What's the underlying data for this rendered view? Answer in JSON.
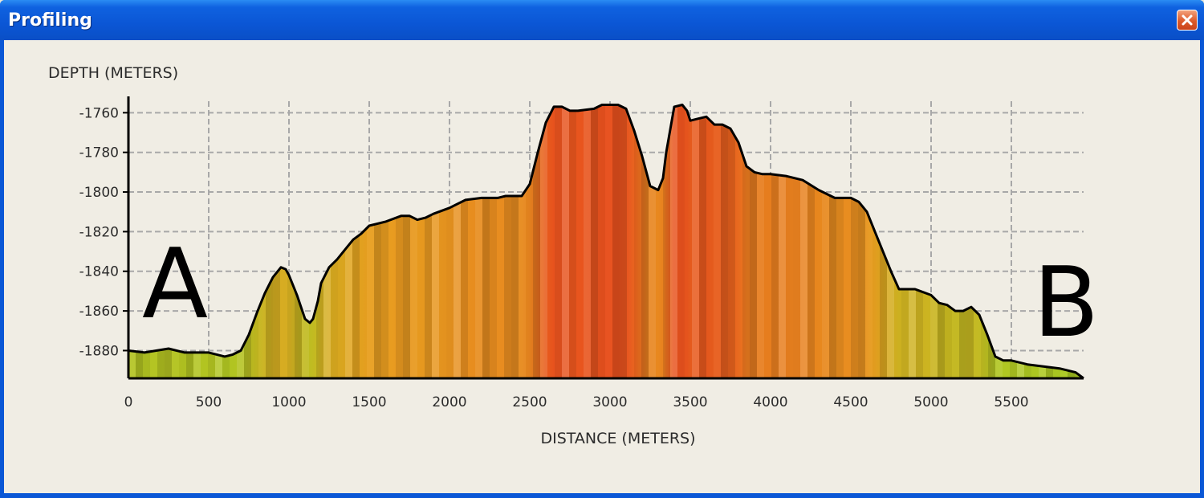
{
  "window": {
    "title": "Profiling"
  },
  "endpoints": {
    "start": "A",
    "end": "B"
  },
  "colors": {
    "titlebar": "#0b56d5",
    "background": "#f0ede4",
    "grid": "#a8a8a8",
    "profile_line": "#000000",
    "shallow": "#e8501e",
    "mid": "#e8a020",
    "deep": "#a8cc22"
  },
  "chart_data": {
    "type": "area",
    "xlabel": "DISTANCE (METERS)",
    "ylabel": "DEPTH (METERS)",
    "xlim": [
      0,
      5950
    ],
    "ylim": [
      -1894,
      -1755
    ],
    "x_ticks": [
      0,
      500,
      1000,
      1500,
      2000,
      2500,
      3000,
      3500,
      4000,
      4500,
      5000,
      5500
    ],
    "y_ticks": [
      -1760,
      -1780,
      -1800,
      -1820,
      -1840,
      -1860,
      -1880
    ],
    "grid": true,
    "series": [
      {
        "x": [
          0,
          100,
          250,
          350,
          500,
          600,
          650,
          700,
          750,
          800,
          850,
          900,
          950,
          980,
          1000,
          1050,
          1100,
          1130,
          1150,
          1180,
          1200,
          1250,
          1300,
          1350,
          1400,
          1450,
          1500,
          1600,
          1700,
          1750,
          1800,
          1850,
          1900,
          2000,
          2100,
          2200,
          2300,
          2350,
          2450,
          2500,
          2550,
          2600,
          2650,
          2700,
          2750,
          2800,
          2900,
          2950,
          3000,
          3050,
          3100,
          3150,
          3200,
          3250,
          3300,
          3330,
          3350,
          3400,
          3450,
          3480,
          3500,
          3550,
          3600,
          3650,
          3700,
          3750,
          3800,
          3850,
          3900,
          3950,
          4000,
          4100,
          4200,
          4300,
          4400,
          4500,
          4550,
          4600,
          4650,
          4700,
          4750,
          4800,
          4850,
          4900,
          5000,
          5050,
          5100,
          5150,
          5200,
          5250,
          5300,
          5350,
          5400,
          5450,
          5500,
          5600,
          5700,
          5800,
          5900,
          5950
        ],
        "y": [
          -1880,
          -1881,
          -1879,
          -1881,
          -1881,
          -1883,
          -1882,
          -1880,
          -1872,
          -1861,
          -1851,
          -1843,
          -1838,
          -1839,
          -1842,
          -1852,
          -1864,
          -1866,
          -1864,
          -1855,
          -1846,
          -1838,
          -1834,
          -1829,
          -1824,
          -1821,
          -1817,
          -1815,
          -1812,
          -1812,
          -1814,
          -1813,
          -1811,
          -1808,
          -1804,
          -1803,
          -1803,
          -1802,
          -1802,
          -1796,
          -1780,
          -1765,
          -1757,
          -1757,
          -1759,
          -1759,
          -1758,
          -1756,
          -1756,
          -1756,
          -1758,
          -1769,
          -1782,
          -1797,
          -1799,
          -1793,
          -1780,
          -1757,
          -1756,
          -1759,
          -1764,
          -1763,
          -1762,
          -1766,
          -1766,
          -1768,
          -1775,
          -1787,
          -1790,
          -1791,
          -1791,
          -1792,
          -1794,
          -1799,
          -1803,
          -1803,
          -1805,
          -1810,
          -1820,
          -1830,
          -1840,
          -1849,
          -1849,
          -1849,
          -1852,
          -1856,
          -1857,
          -1860,
          -1860,
          -1858,
          -1862,
          -1872,
          -1883,
          -1885,
          -1885,
          -1887,
          -1888,
          -1889,
          -1891,
          -1894
        ]
      }
    ]
  }
}
